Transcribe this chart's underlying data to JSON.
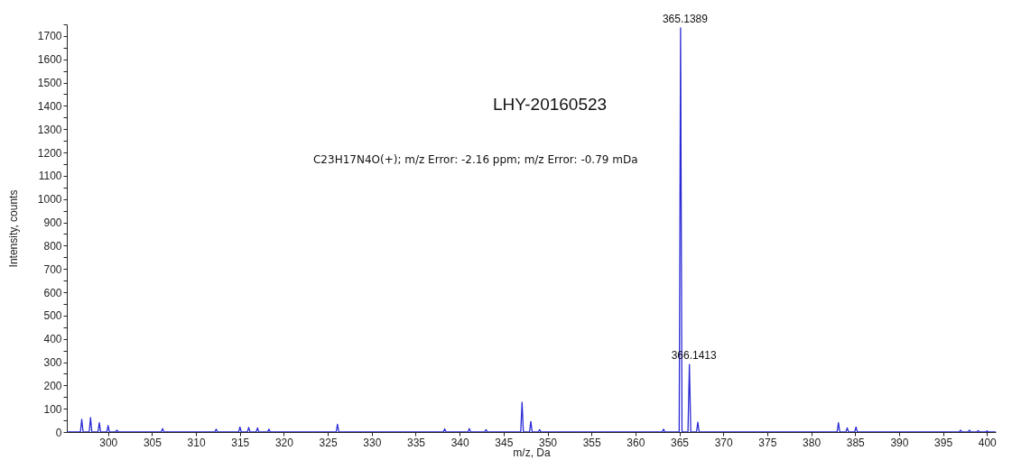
{
  "chart_data": {
    "type": "line",
    "title": "LHY-20160523",
    "xlabel": "m/z, Da",
    "ylabel": "Intensity, counts",
    "annotations": [
      "C23H17N4O(+); m/z Error: -2.16 ppm; m/z Error: -0.79 mDa",
      {
        "text": "365.1389",
        "x": 365.1389,
        "y": 1735
      },
      {
        "text": "366.1413",
        "x": 366.1413,
        "y": 290
      }
    ],
    "series": [
      {
        "color": "#2b2bd6",
        "x": [
          295.3,
          296.85,
          297,
          297.15,
          297.85,
          298,
          298.15,
          298.85,
          299,
          299.15,
          299.85,
          300,
          300.15,
          300.85,
          301,
          301.15,
          306.05,
          306.2,
          306.35,
          312.15,
          312.3,
          312.45,
          314.85,
          315,
          315.15,
          315.85,
          316,
          316.15,
          316.85,
          317,
          317.15,
          318.15,
          318.3,
          318.45,
          325.95,
          326.1,
          326.25,
          338.15,
          338.3,
          338.45,
          340.95,
          341.1,
          341.25,
          342.85,
          343,
          343.15,
          346.95,
          347.1,
          347.25,
          347.95,
          348.1,
          348.25,
          348.95,
          349.1,
          349.25,
          363.05,
          363.2,
          363.35,
          364.98,
          365.1389,
          365.3,
          365.98,
          366.1413,
          366.3,
          366.95,
          367.1,
          367.25,
          382.95,
          383.1,
          383.25,
          383.95,
          384.1,
          384.25,
          384.95,
          385.1,
          385.25,
          396.85,
          397,
          397.15,
          397.85,
          398,
          398.15,
          398.85,
          399,
          399.15,
          399.85,
          400,
          400.15,
          401
        ],
        "values": [
          0,
          0,
          55,
          0,
          0,
          62,
          0,
          0,
          40,
          0,
          0,
          28,
          0,
          0,
          8,
          0,
          0,
          15,
          0,
          0,
          12,
          0,
          0,
          22,
          0,
          0,
          20,
          0,
          0,
          18,
          0,
          0,
          12,
          0,
          0,
          33,
          0,
          0,
          14,
          0,
          0,
          15,
          0,
          0,
          10,
          0,
          0,
          128,
          0,
          0,
          45,
          0,
          0,
          10,
          0,
          0,
          12,
          0,
          0,
          1735,
          0,
          0,
          290,
          0,
          0,
          42,
          0,
          0,
          40,
          0,
          0,
          18,
          0,
          0,
          22,
          0,
          0,
          8,
          0,
          0,
          8,
          0,
          0,
          6,
          0,
          0,
          5,
          0,
          0
        ]
      }
    ],
    "xlim": [
      295.3,
      401
    ],
    "xticks": [
      300,
      305,
      310,
      315,
      320,
      325,
      330,
      335,
      340,
      345,
      350,
      355,
      360,
      365,
      370,
      375,
      380,
      385,
      390,
      395,
      400
    ],
    "ylim": [
      0,
      1750
    ],
    "yticks": [
      0,
      {
        "value": 50,
        "label": null
      },
      100,
      {
        "value": 150,
        "label": null
      },
      200,
      {
        "value": 250,
        "label": null
      },
      300,
      {
        "value": 350,
        "label": null
      },
      400,
      {
        "value": 450,
        "label": null
      },
      500,
      {
        "value": 550,
        "label": null
      },
      600,
      {
        "value": 650,
        "label": null
      },
      700,
      {
        "value": 750,
        "label": null
      },
      800,
      {
        "value": 850,
        "label": null
      },
      900,
      {
        "value": 950,
        "label": null
      },
      1000,
      {
        "value": 1050,
        "label": null
      },
      1100,
      {
        "value": 1150,
        "label": null
      },
      1200,
      {
        "value": 1250,
        "label": null
      },
      1300,
      {
        "value": 1350,
        "label": null
      },
      1400,
      {
        "value": 1450,
        "label": null
      },
      1500,
      {
        "value": 1550,
        "label": null
      },
      1600,
      {
        "value": 1650,
        "label": null
      },
      1700,
      {
        "value": 1750,
        "label": null
      }
    ],
    "grid": false
  }
}
